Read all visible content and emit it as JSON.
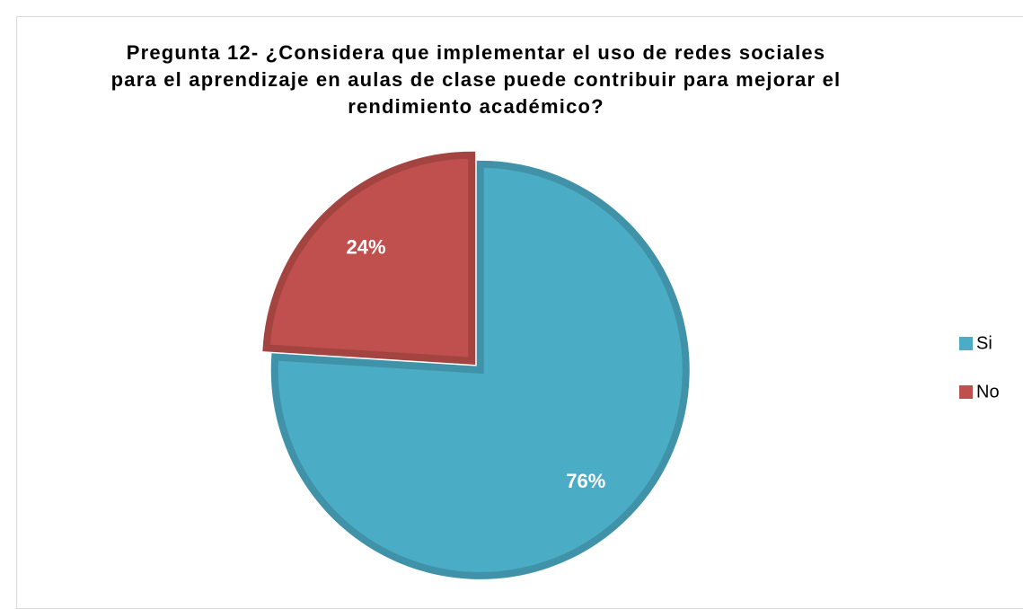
{
  "chart_data": {
    "type": "pie",
    "title": "Pregunta 12- ¿Considera que implementar el uso de redes sociales para el aprendizaje en aulas de clase puede contribuir para mejorar el rendimiento académico?",
    "categories": [
      "Si",
      "No"
    ],
    "values": [
      76,
      24
    ],
    "value_labels": [
      "76%",
      "24%"
    ],
    "colors": [
      "#4bacc6",
      "#c0504d"
    ],
    "legend": "right"
  }
}
